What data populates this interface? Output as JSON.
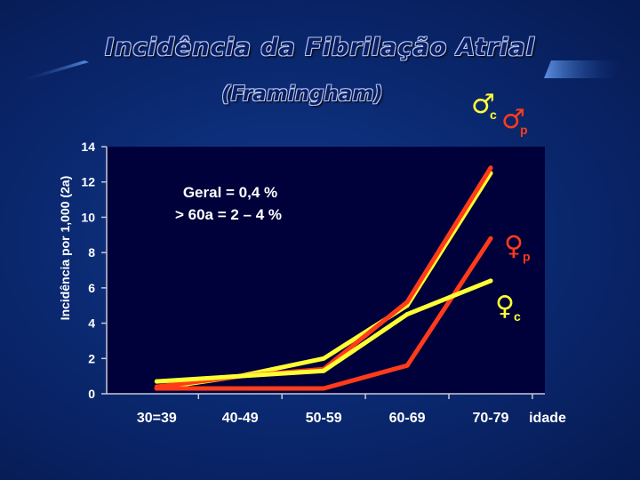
{
  "slide": {
    "title": "Incidência da Fibrilação Atrial",
    "subtitle": "(Framingham)"
  },
  "annotation": {
    "line1": "Geral = 0,4 %",
    "line2": "> 60a = 2 – 4 %"
  },
  "colors": {
    "background": "#0b2a73",
    "yellow": "#ffff33",
    "red": "#ff3b1a",
    "axis": "#c8c8d8"
  },
  "chart_data": {
    "type": "line",
    "ylabel": "Incidência por 1,000 (2a)",
    "xlabel": "idade",
    "categories": [
      "30=39",
      "40-49",
      "50-59",
      "60-69",
      "70-79"
    ],
    "y_ticks": [
      0,
      2,
      4,
      6,
      8,
      10,
      12,
      14
    ],
    "ylim": [
      0,
      14
    ],
    "grid": false,
    "series": [
      {
        "name": "♂ c",
        "symbol": "♂",
        "sub": "c",
        "color": "#ffff33",
        "values": [
          0.3,
          1.0,
          2.0,
          5.0,
          12.5
        ]
      },
      {
        "name": "♂ p",
        "symbol": "♂",
        "sub": "p",
        "color": "#ff3b1a",
        "values": [
          0.4,
          1.0,
          1.4,
          5.2,
          12.8
        ]
      },
      {
        "name": "♀ p",
        "symbol": "♀",
        "sub": "p",
        "color": "#ff3b1a",
        "values": [
          0.3,
          0.3,
          0.3,
          1.6,
          8.8
        ]
      },
      {
        "name": "♀ c",
        "symbol": "♀",
        "sub": "c",
        "color": "#ffff33",
        "values": [
          0.7,
          1.0,
          1.3,
          4.5,
          6.4
        ]
      }
    ]
  }
}
